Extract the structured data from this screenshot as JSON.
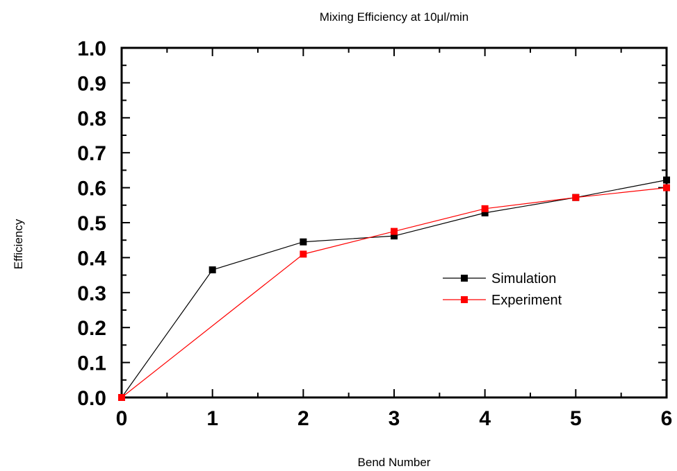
{
  "chart_data": {
    "type": "line",
    "title": "Mixing Efficiency at 10μl/min",
    "xlabel": "Bend Number",
    "ylabel": "Efficiency",
    "xlim": [
      0,
      6
    ],
    "ylim": [
      0,
      1.0
    ],
    "x_ticks": [
      "0",
      "1",
      "2",
      "3",
      "4",
      "5",
      "6"
    ],
    "y_ticks": [
      "0.0",
      "0.1",
      "0.2",
      "0.3",
      "0.4",
      "0.5",
      "0.6",
      "0.7",
      "0.8",
      "0.9",
      "1.0"
    ],
    "grid": false,
    "legend_position": "right-middle",
    "series": [
      {
        "name": "Simulation",
        "color": "#000000",
        "marker": "square",
        "x": [
          0,
          1,
          2,
          3,
          4,
          5,
          6
        ],
        "y": [
          0.0,
          0.365,
          0.445,
          0.462,
          0.528,
          0.572,
          0.622
        ]
      },
      {
        "name": "Experiment",
        "color": "#ff0000",
        "marker": "square",
        "x": [
          0,
          2,
          3,
          4,
          5,
          6
        ],
        "y": [
          0.0,
          0.41,
          0.475,
          0.54,
          0.572,
          0.6
        ]
      }
    ]
  }
}
